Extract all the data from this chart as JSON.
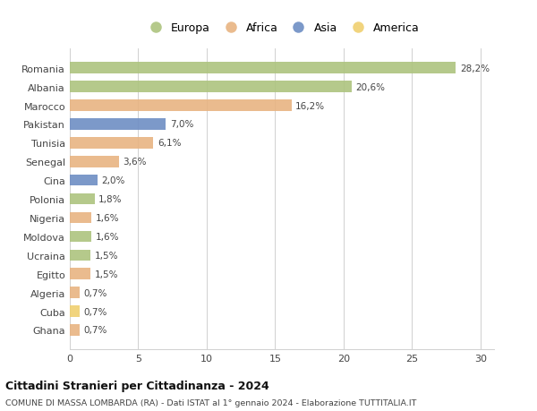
{
  "countries": [
    "Romania",
    "Albania",
    "Marocco",
    "Pakistan",
    "Tunisia",
    "Senegal",
    "Cina",
    "Polonia",
    "Nigeria",
    "Moldova",
    "Ucraina",
    "Egitto",
    "Algeria",
    "Cuba",
    "Ghana"
  ],
  "values": [
    28.2,
    20.6,
    16.2,
    7.0,
    6.1,
    3.6,
    2.0,
    1.8,
    1.6,
    1.6,
    1.5,
    1.5,
    0.7,
    0.7,
    0.7
  ],
  "labels": [
    "28,2%",
    "20,6%",
    "16,2%",
    "7,0%",
    "6,1%",
    "3,6%",
    "2,0%",
    "1,8%",
    "1,6%",
    "1,6%",
    "1,5%",
    "1,5%",
    "0,7%",
    "0,7%",
    "0,7%"
  ],
  "colors": [
    "#adc47e",
    "#adc47e",
    "#e8b482",
    "#6e8ec4",
    "#e8b482",
    "#e8b482",
    "#6e8ec4",
    "#adc47e",
    "#e8b482",
    "#adc47e",
    "#adc47e",
    "#e8b482",
    "#e8b482",
    "#f0d070",
    "#e8b482"
  ],
  "legend_labels": [
    "Europa",
    "Africa",
    "Asia",
    "America"
  ],
  "legend_colors": [
    "#adc47e",
    "#e8b482",
    "#6e8ec4",
    "#f0d070"
  ],
  "title": "Cittadini Stranieri per Cittadinanza - 2024",
  "subtitle": "COMUNE DI MASSA LOMBARDA (RA) - Dati ISTAT al 1° gennaio 2024 - Elaborazione TUTTITALIA.IT",
  "xlim": [
    0,
    31
  ],
  "xticks": [
    0,
    5,
    10,
    15,
    20,
    25,
    30
  ],
  "bg_color": "#ffffff",
  "grid_color": "#d0d0d0",
  "bar_height": 0.6
}
